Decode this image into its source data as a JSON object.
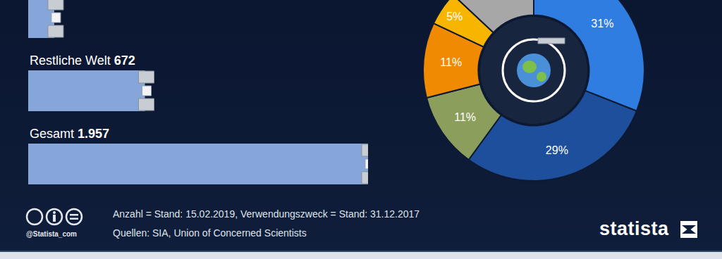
{
  "chart_data": [
    {
      "type": "bar",
      "orientation": "horizontal",
      "categories": [
        null,
        "Restliche Welt",
        "Gesamt"
      ],
      "values": [
        150,
        672,
        1957
      ],
      "value_labels": [
        null,
        "672",
        "1.957"
      ],
      "data_labels": true,
      "tick_labels": false,
      "color": "#86a6da"
    },
    {
      "type": "pie",
      "values": [
        31,
        29,
        11,
        11,
        5,
        13
      ],
      "value_labels": [
        "31%",
        "29%",
        "11%",
        "11%",
        "5%",
        null
      ],
      "colors": [
        "#2f7de1",
        "#1d4f9c",
        "#8b9e5b",
        "#f08a00",
        "#f7b500",
        "#a7a7a7"
      ],
      "data_labels": true
    }
  ],
  "footer": {
    "handle": "@Statista_com",
    "note": "Anzahl = Stand: 15.02.2019, Verwendungszweck = Stand: 31.12.2017",
    "sources": "Quellen: SIA, Union of Concerned Scientists",
    "logo": "statista"
  }
}
